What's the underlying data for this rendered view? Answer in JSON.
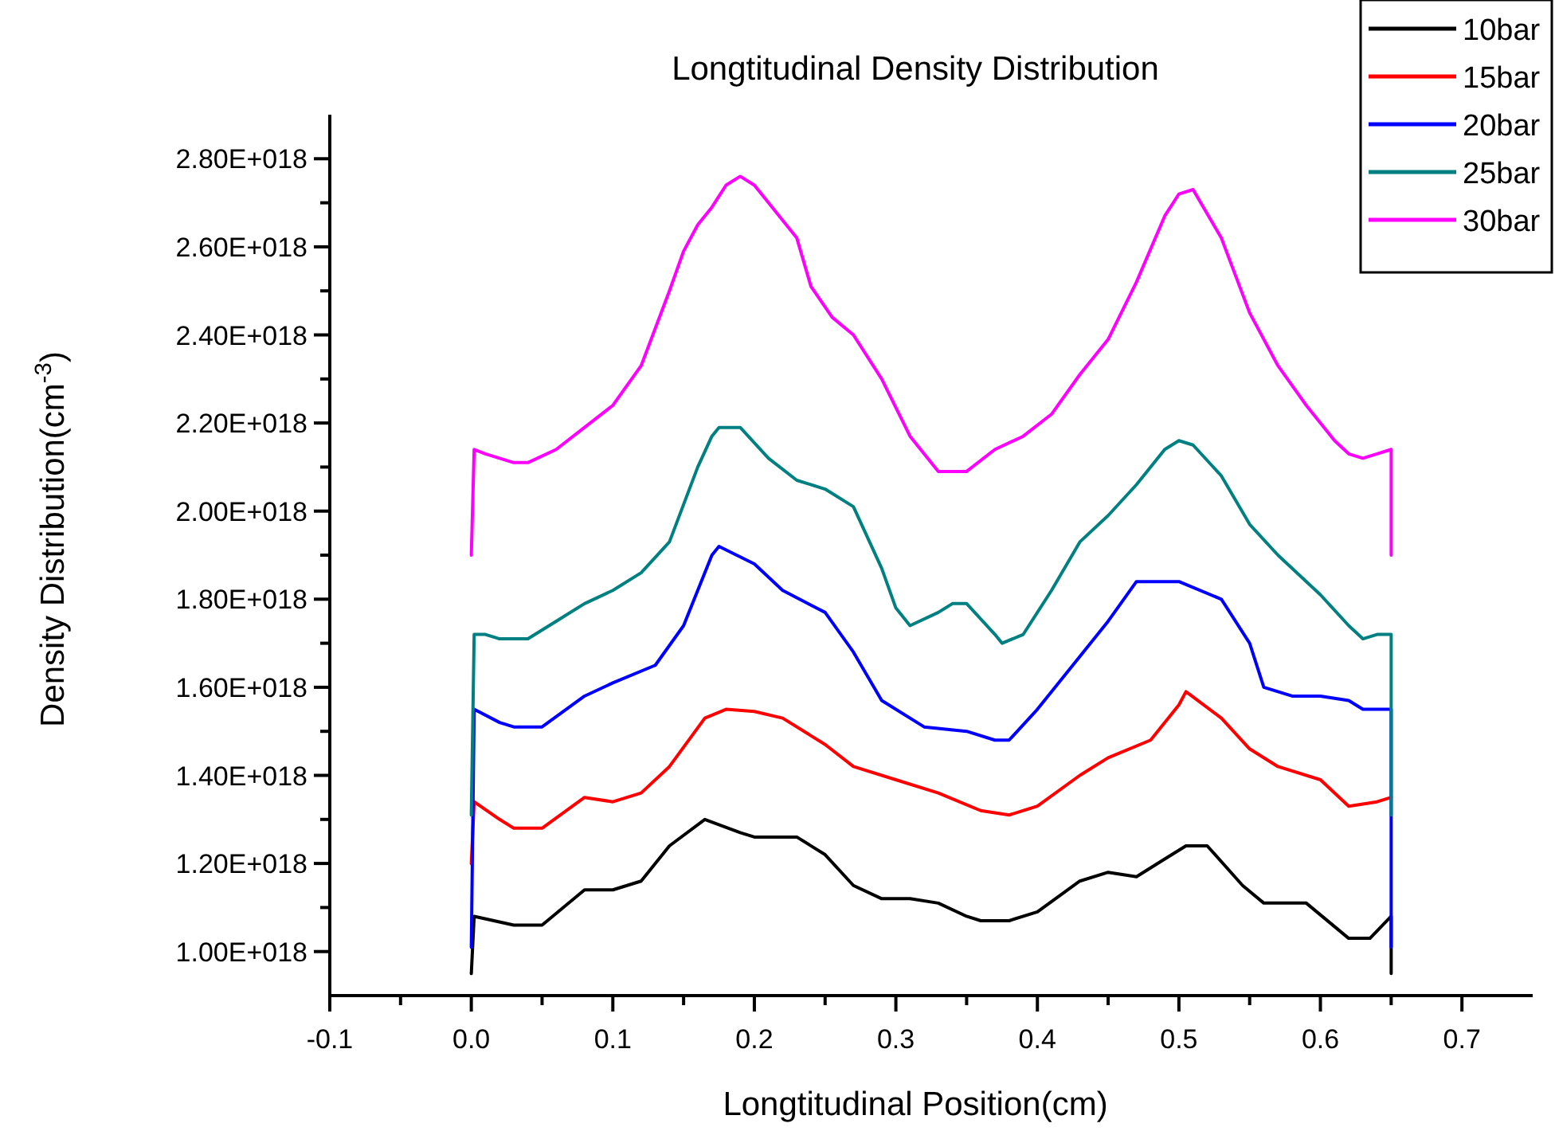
{
  "chart_data": {
    "type": "line",
    "title": "Longtitudinal Density Distribution",
    "xlabel": "Longtitudinal Position(cm)",
    "ylabel": "Density Distribution(cm$^{-3}$)",
    "xlim": [
      -0.1,
      0.75
    ],
    "xticks": [
      -0.1,
      {
        "value": -0.05,
        "label": null
      },
      {
        "value": 0,
        "label": "0.0"
      },
      {
        "value": 0.05,
        "label": null
      },
      0.1,
      {
        "value": 0.15,
        "label": null
      },
      0.2,
      {
        "value": 0.25,
        "label": null
      },
      0.3,
      {
        "value": 0.35,
        "label": null
      },
      0.4,
      {
        "value": 0.45,
        "label": null
      },
      0.5,
      {
        "value": 0.55,
        "label": null
      },
      0.6,
      {
        "value": 0.65,
        "label": null
      },
      0.7
    ],
    "ylim": [
      9e+17,
      2.9e+18
    ],
    "yticks": [
      {
        "value": 1e+18,
        "label": "1.00E+018"
      },
      {
        "value": 1.1e+18,
        "label": null
      },
      {
        "value": 1.2e+18,
        "label": "1.20E+018"
      },
      {
        "value": 1.3e+18,
        "label": null
      },
      {
        "value": 1.4e+18,
        "label": "1.40E+018"
      },
      {
        "value": 1.5e+18,
        "label": null
      },
      {
        "value": 1.6e+18,
        "label": "1.60E+018"
      },
      {
        "value": 1.7e+18,
        "label": null
      },
      {
        "value": 1.8e+18,
        "label": "1.80E+018"
      },
      {
        "value": 1.9e+18,
        "label": null
      },
      {
        "value": 2e+18,
        "label": "2.00E+018"
      },
      {
        "value": 2.1e+18,
        "label": null
      },
      {
        "value": 2.2e+18,
        "label": "2.20E+018"
      },
      {
        "value": 2.3e+18,
        "label": null
      },
      {
        "value": 2.4e+18,
        "label": "2.40E+018"
      },
      {
        "value": 2.5e+18,
        "label": null
      },
      {
        "value": 2.6e+18,
        "label": "2.60E+018"
      },
      {
        "value": 2.7e+18,
        "label": null
      },
      {
        "value": 2.8e+18,
        "label": "2.80E+018"
      }
    ],
    "legend": "top right",
    "grid": false,
    "marker": "none",
    "line_style": "solid",
    "series": [
      {
        "name": "10bar",
        "color": "#000000",
        "x": [
          0,
          0.002,
          0.03,
          0.05,
          0.08,
          0.1,
          0.12,
          0.14,
          0.165,
          0.19,
          0.2,
          0.23,
          0.25,
          0.27,
          0.29,
          0.31,
          0.33,
          0.35,
          0.36,
          0.38,
          0.4,
          0.43,
          0.45,
          0.47,
          0.49,
          0.505,
          0.52,
          0.545,
          0.56,
          0.59,
          0.62,
          0.635,
          0.65,
          0.65
        ],
        "values": [
          9.5e+17,
          1.08e+18,
          1.06e+18,
          1.06e+18,
          1.14e+18,
          1.14e+18,
          1.16e+18,
          1.24e+18,
          1.3e+18,
          1.27e+18,
          1.26e+18,
          1.26e+18,
          1.22e+18,
          1.15e+18,
          1.12e+18,
          1.12e+18,
          1.11e+18,
          1.08e+18,
          1.07e+18,
          1.07e+18,
          1.09e+18,
          1.16e+18,
          1.18e+18,
          1.17e+18,
          1.21e+18,
          1.24e+18,
          1.24e+18,
          1.15e+18,
          1.11e+18,
          1.11e+18,
          1.03e+18,
          1.03e+18,
          1.08e+18,
          9.5e+17
        ]
      },
      {
        "name": "15bar",
        "color": "#ff0000",
        "x": [
          0,
          0.002,
          0.02,
          0.03,
          0.05,
          0.08,
          0.1,
          0.12,
          0.14,
          0.165,
          0.18,
          0.2,
          0.22,
          0.25,
          0.27,
          0.3,
          0.33,
          0.36,
          0.38,
          0.4,
          0.43,
          0.45,
          0.48,
          0.5,
          0.505,
          0.53,
          0.55,
          0.57,
          0.6,
          0.62,
          0.64,
          0.65
        ],
        "values": [
          1.2e+18,
          1.34e+18,
          1.3e+18,
          1.28e+18,
          1.28e+18,
          1.35e+18,
          1.34e+18,
          1.36e+18,
          1.42e+18,
          1.53e+18,
          1.55e+18,
          1.545e+18,
          1.53e+18,
          1.47e+18,
          1.42e+18,
          1.39e+18,
          1.36e+18,
          1.32e+18,
          1.31e+18,
          1.33e+18,
          1.4e+18,
          1.44e+18,
          1.48e+18,
          1.56e+18,
          1.59e+18,
          1.53e+18,
          1.46e+18,
          1.42e+18,
          1.39e+18,
          1.33e+18,
          1.34e+18,
          1.35e+18
        ]
      },
      {
        "name": "20bar",
        "color": "#0000ff",
        "x": [
          0,
          0.002,
          0.02,
          0.03,
          0.05,
          0.08,
          0.1,
          0.13,
          0.15,
          0.17,
          0.175,
          0.2,
          0.22,
          0.25,
          0.27,
          0.29,
          0.32,
          0.35,
          0.37,
          0.38,
          0.4,
          0.43,
          0.45,
          0.47,
          0.5,
          0.53,
          0.55,
          0.56,
          0.58,
          0.6,
          0.62,
          0.63,
          0.65,
          0.65
        ],
        "values": [
          1.01e+18,
          1.55e+18,
          1.52e+18,
          1.51e+18,
          1.51e+18,
          1.58e+18,
          1.61e+18,
          1.65e+18,
          1.74e+18,
          1.9e+18,
          1.92e+18,
          1.88e+18,
          1.82e+18,
          1.77e+18,
          1.68e+18,
          1.57e+18,
          1.51e+18,
          1.5e+18,
          1.48e+18,
          1.48e+18,
          1.55e+18,
          1.67e+18,
          1.75e+18,
          1.84e+18,
          1.84e+18,
          1.8e+18,
          1.7e+18,
          1.6e+18,
          1.58e+18,
          1.58e+18,
          1.57e+18,
          1.55e+18,
          1.55e+18,
          1.01e+18
        ]
      },
      {
        "name": "25bar",
        "color": "#008080",
        "x": [
          0,
          0.002,
          0.01,
          0.02,
          0.04,
          0.06,
          0.08,
          0.1,
          0.12,
          0.14,
          0.16,
          0.17,
          0.175,
          0.19,
          0.21,
          0.23,
          0.25,
          0.27,
          0.29,
          0.3,
          0.31,
          0.33,
          0.34,
          0.35,
          0.37,
          0.375,
          0.39,
          0.41,
          0.43,
          0.45,
          0.47,
          0.49,
          0.5,
          0.51,
          0.53,
          0.55,
          0.57,
          0.6,
          0.62,
          0.63,
          0.64,
          0.65,
          0.65
        ],
        "values": [
          1.31e+18,
          1.72e+18,
          1.72e+18,
          1.71e+18,
          1.71e+18,
          1.75e+18,
          1.79e+18,
          1.82e+18,
          1.86e+18,
          1.93e+18,
          2.1e+18,
          2.17e+18,
          2.19e+18,
          2.19e+18,
          2.12e+18,
          2.07e+18,
          2.05e+18,
          2.01e+18,
          1.87e+18,
          1.78e+18,
          1.74e+18,
          1.77e+18,
          1.79e+18,
          1.79e+18,
          1.72e+18,
          1.7e+18,
          1.72e+18,
          1.82e+18,
          1.93e+18,
          1.99e+18,
          2.06e+18,
          2.14e+18,
          2.16e+18,
          2.15e+18,
          2.08e+18,
          1.97e+18,
          1.9e+18,
          1.81e+18,
          1.74e+18,
          1.71e+18,
          1.72e+18,
          1.72e+18,
          1.31e+18
        ]
      },
      {
        "name": "30bar",
        "color": "#ff00ff",
        "x": [
          0,
          0.002,
          0.01,
          0.03,
          0.04,
          0.06,
          0.08,
          0.1,
          0.12,
          0.14,
          0.15,
          0.16,
          0.17,
          0.18,
          0.19,
          0.2,
          0.21,
          0.23,
          0.24,
          0.255,
          0.27,
          0.29,
          0.31,
          0.33,
          0.35,
          0.37,
          0.39,
          0.41,
          0.43,
          0.45,
          0.47,
          0.49,
          0.5,
          0.51,
          0.53,
          0.55,
          0.57,
          0.59,
          0.61,
          0.62,
          0.63,
          0.64,
          0.65,
          0.65
        ],
        "values": [
          1.9e+18,
          2.14e+18,
          2.13e+18,
          2.11e+18,
          2.11e+18,
          2.14e+18,
          2.19e+18,
          2.24e+18,
          2.33e+18,
          2.5e+18,
          2.59e+18,
          2.65e+18,
          2.69e+18,
          2.74e+18,
          2.76e+18,
          2.74e+18,
          2.7e+18,
          2.62e+18,
          2.51e+18,
          2.44e+18,
          2.4e+18,
          2.3e+18,
          2.17e+18,
          2.09e+18,
          2.09e+18,
          2.14e+18,
          2.17e+18,
          2.22e+18,
          2.31e+18,
          2.39e+18,
          2.52e+18,
          2.67e+18,
          2.72e+18,
          2.73e+18,
          2.62e+18,
          2.45e+18,
          2.33e+18,
          2.24e+18,
          2.16e+18,
          2.13e+18,
          2.12e+18,
          2.13e+18,
          2.14e+18,
          1.9e+18
        ]
      }
    ]
  }
}
